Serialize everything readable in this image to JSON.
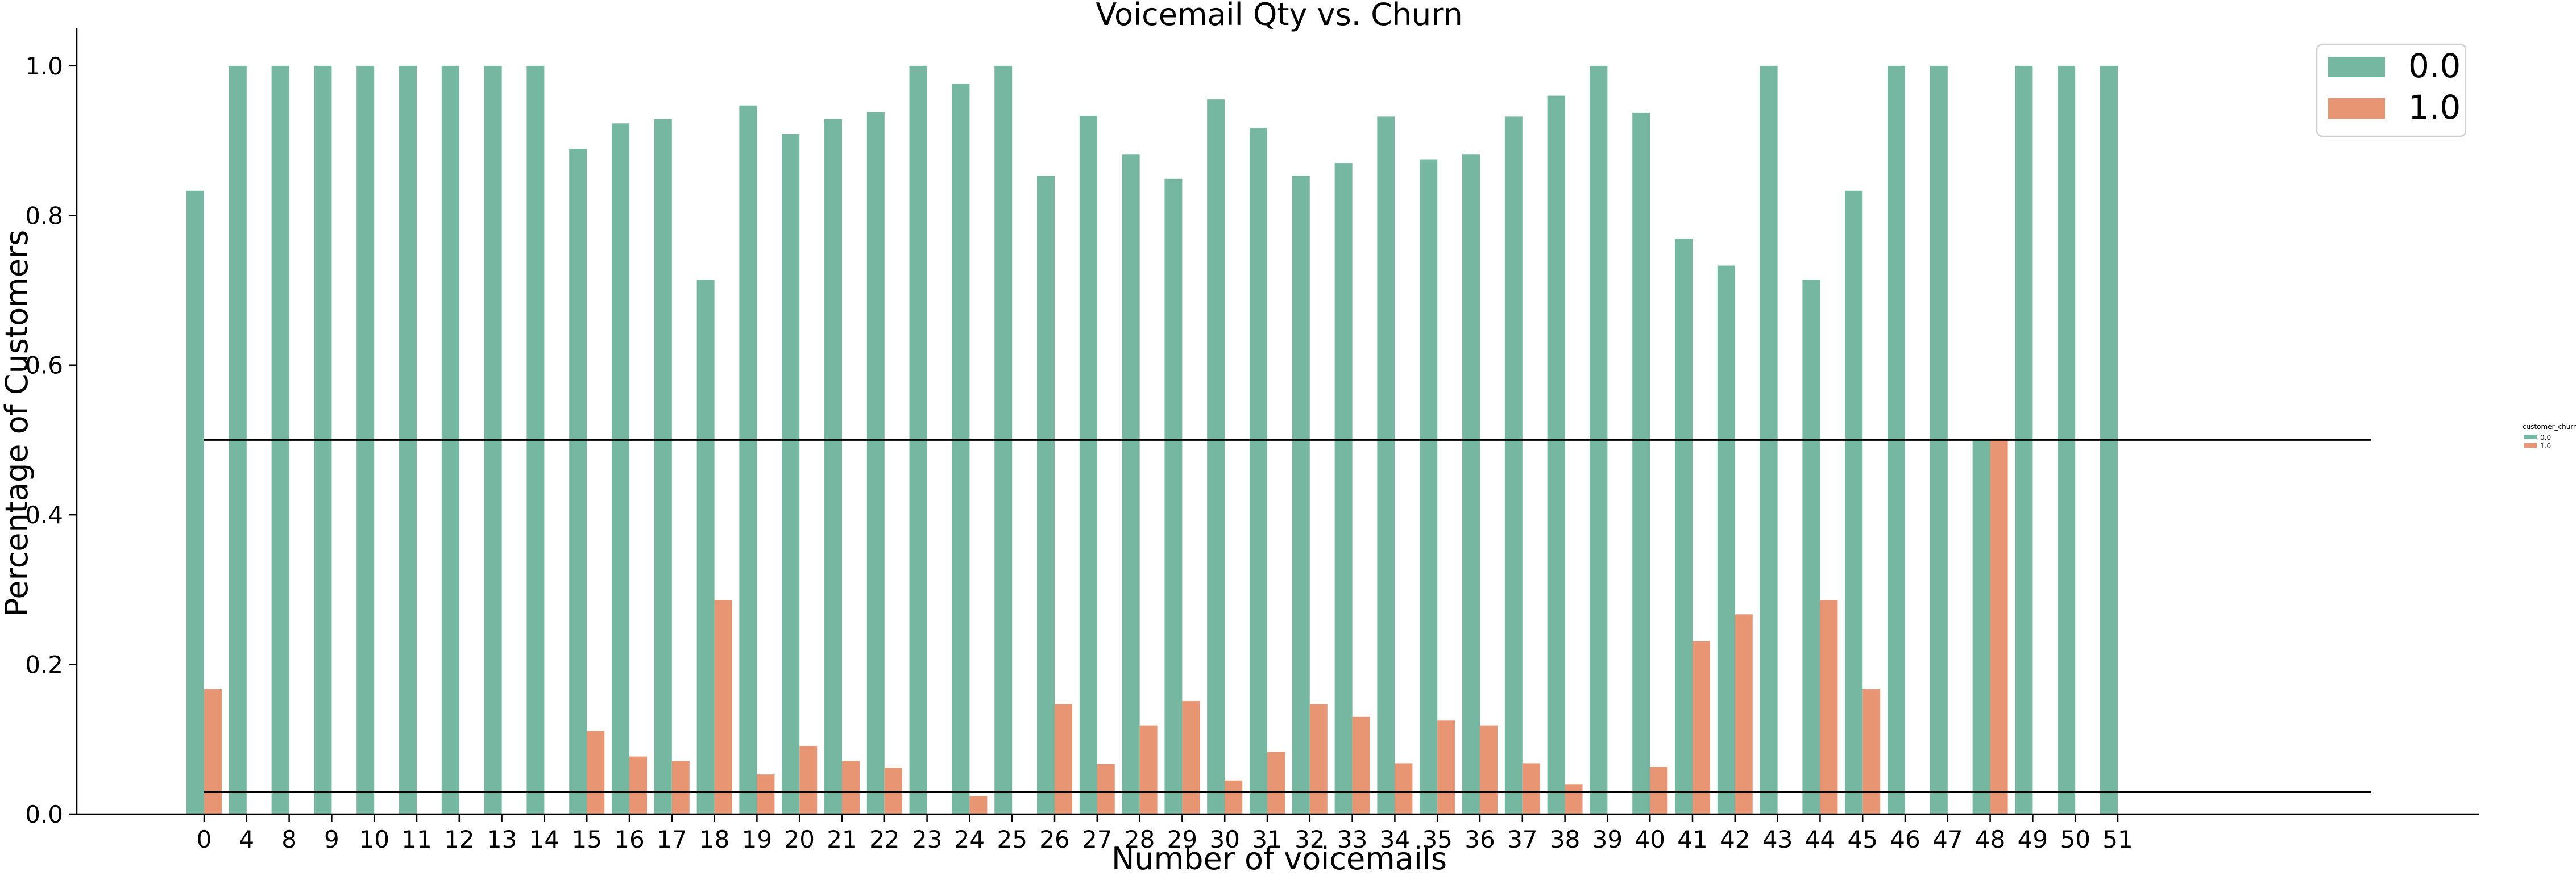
{
  "chart_data": {
    "type": "bar",
    "title": "Voicemail Qty vs. Churn",
    "xlabel": "Number of voicemails",
    "ylabel": "Percentage of Customers",
    "ylim": [
      0,
      1.05
    ],
    "yticks": [
      "0.0",
      "0.2",
      "0.4",
      "0.6",
      "0.8",
      "1.0"
    ],
    "ytick_values": [
      0,
      0.2,
      0.4,
      0.6,
      0.8,
      1.0
    ],
    "categories": [
      "0",
      "4",
      "8",
      "9",
      "10",
      "11",
      "12",
      "13",
      "14",
      "15",
      "16",
      "17",
      "18",
      "19",
      "20",
      "21",
      "22",
      "23",
      "24",
      "25",
      "26",
      "27",
      "28",
      "29",
      "30",
      "31",
      "32",
      "33",
      "34",
      "35",
      "36",
      "37",
      "38",
      "39",
      "40",
      "41",
      "42",
      "43",
      "44",
      "45",
      "46",
      "47",
      "48",
      "49",
      "50",
      "51"
    ],
    "series": [
      {
        "name": "0.0",
        "color": "#76b7a1",
        "values": [
          0.833,
          1.0,
          1.0,
          1.0,
          1.0,
          1.0,
          1.0,
          1.0,
          1.0,
          0.889,
          0.923,
          0.929,
          0.714,
          0.947,
          0.909,
          0.929,
          0.938,
          1.0,
          0.976,
          1.0,
          0.853,
          0.933,
          0.882,
          0.849,
          0.955,
          0.917,
          0.853,
          0.87,
          0.932,
          0.875,
          0.882,
          0.932,
          0.96,
          1.0,
          0.937,
          0.769,
          0.733,
          1.0,
          0.714,
          0.833,
          1.0,
          1.0,
          0.5,
          1.0,
          1.0,
          1.0
        ]
      },
      {
        "name": "1.0",
        "color": "#e89574",
        "values": [
          0.167,
          0,
          0,
          0,
          0,
          0,
          0,
          0,
          0,
          0.111,
          0.077,
          0.071,
          0.286,
          0.053,
          0.091,
          0.071,
          0.062,
          0,
          0.024,
          0,
          0.147,
          0.067,
          0.118,
          0.151,
          0.045,
          0.083,
          0.147,
          0.13,
          0.068,
          0.125,
          0.118,
          0.068,
          0.04,
          0,
          0.063,
          0.231,
          0.267,
          0,
          0.286,
          0.167,
          0,
          0,
          0.5,
          0,
          0,
          0
        ]
      }
    ],
    "reference_lines": [
      0.5,
      0.03
    ],
    "legend_position": "top-right",
    "grid": false,
    "secondary_legend": {
      "title": "customer_churn",
      "entries": [
        "0.0",
        "1.0"
      ],
      "position": "right"
    }
  }
}
